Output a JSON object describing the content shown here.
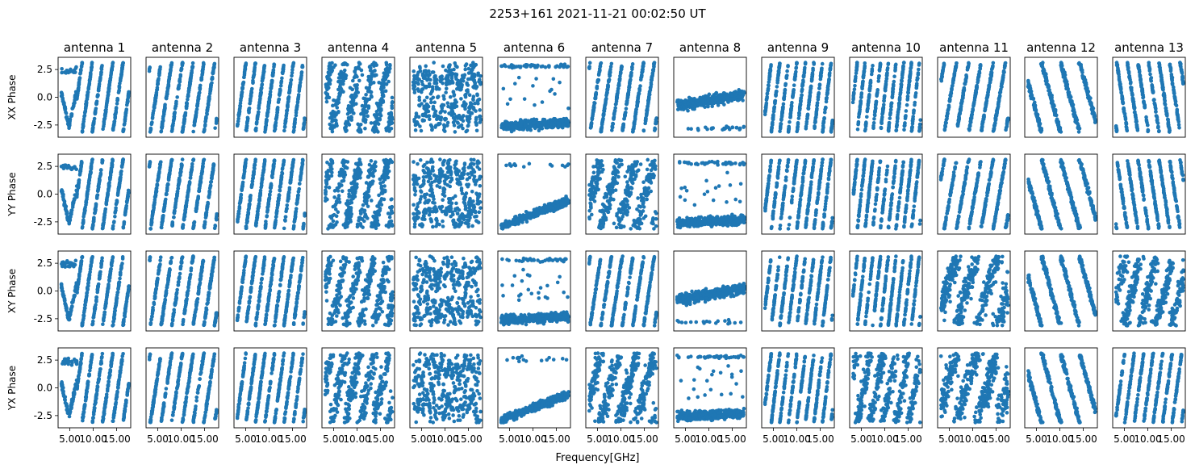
{
  "figure": {
    "suptitle": "2253+161 2021-11-21 00:02:50 UT",
    "xlabel": "Frequency[GHz]",
    "marker_color": "#1f77b4"
  },
  "chart_data": {
    "type": "scatter",
    "title": "2253+161 2021-11-21 00:02:50 UT",
    "xlabel": "Frequency[GHz]",
    "columns": [
      "antenna 1",
      "antenna 2",
      "antenna 3",
      "antenna 4",
      "antenna 5",
      "antenna 6",
      "antenna 7",
      "antenna 8",
      "antenna 9",
      "antenna 10",
      "antenna 11",
      "antenna 12",
      "antenna 13"
    ],
    "rows": [
      "XX Phase",
      "YY Phase",
      "XY Phase",
      "YX Phase"
    ],
    "xlim": [
      2.5,
      18.0
    ],
    "ylim": [
      -3.6,
      3.6
    ],
    "xticks": [
      5.0,
      10.0,
      15.0
    ],
    "xtick_labels": [
      "5.00",
      "10.00",
      "15.00"
    ],
    "yticks": [
      2.5,
      0.0,
      -2.5
    ],
    "ytick_labels": [
      "2.5",
      "0.0",
      "-2.5"
    ],
    "frequency_range_ghz": [
      3.2,
      17.6
    ],
    "patterns": [
      [
        "V+stripes",
        "stripes",
        "stripes",
        "scatter",
        "wave-scatter",
        "low-band",
        "stripes",
        "flat-ramp",
        "stripes",
        "stripes",
        "stripes",
        "neg-diagonal",
        "neg-stripes"
      ],
      [
        "V+stripes",
        "stripes",
        "stripes",
        "scatter",
        "wave-scatter",
        "ramp-up",
        "scatter",
        "low-band",
        "stripes",
        "stripes",
        "stripes",
        "neg-diagonal",
        "neg-stripes"
      ],
      [
        "V+stripes",
        "stripes",
        "stripes",
        "scatter",
        "wave-scatter",
        "low-band",
        "stripes",
        "flat-ramp",
        "stripes",
        "stripes",
        "scatter",
        "neg-diagonal",
        "scatter"
      ],
      [
        "V+stripes",
        "stripes",
        "stripes",
        "scatter",
        "wave-scatter",
        "ramp-up",
        "scatter",
        "low-band",
        "stripes",
        "scatter",
        "scatter",
        "neg-diagonal",
        "stripes"
      ]
    ],
    "legend": "none",
    "grid": false
  }
}
